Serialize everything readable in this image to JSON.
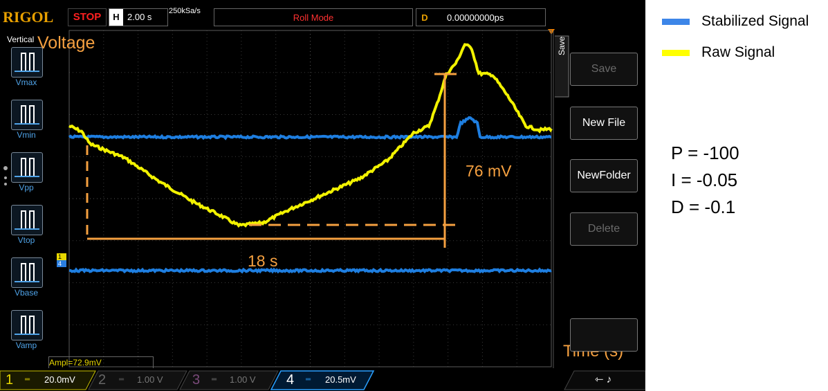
{
  "scope": {
    "brand": "RIGOL",
    "run_state": "STOP",
    "horizontal": {
      "label": "H",
      "value": "2.00 s"
    },
    "sample_rate": "250kSa/s",
    "mode": "Roll Mode",
    "delay": {
      "label": "D",
      "value": "0.00000000ps"
    },
    "vertical_label": "Vertical",
    "measure_buttons": [
      {
        "label": "Vmax"
      },
      {
        "label": "Vmin"
      },
      {
        "label": "Vpp"
      },
      {
        "label": "Vtop"
      },
      {
        "label": "Vbase"
      },
      {
        "label": "Vamp"
      }
    ],
    "measurement_readout": "Ampl=72.9mV",
    "right_menu": {
      "side_tab": "Save",
      "buttons": [
        {
          "label": "Save",
          "enabled": false
        },
        {
          "label": "New File",
          "enabled": true
        },
        {
          "label": "NewFolder",
          "enabled": true
        },
        {
          "label": "Delete",
          "enabled": false
        }
      ]
    },
    "channels": [
      {
        "num": "1",
        "value": "20.0mV",
        "color": "#e8d800",
        "active": true
      },
      {
        "num": "2",
        "value": "1.00 V",
        "color": "#888888",
        "active": false
      },
      {
        "num": "3",
        "value": "1.00 V",
        "color": "#8a5a8a",
        "active": false
      },
      {
        "num": "4",
        "value": "20.5mV",
        "color": "#2aa0ff",
        "active": true
      }
    ],
    "colors": {
      "ch1": "#f2f200",
      "ch4": "#1e7ee0",
      "annotation": "#f5a040",
      "brand": "#e8a000"
    }
  },
  "annotations": {
    "y_axis": "Voltage",
    "x_axis": "Time (s)",
    "amplitude": "76 mV",
    "duration": "18 s"
  },
  "legend": [
    {
      "label": "Stabilized Signal",
      "color": "#3d86e8"
    },
    {
      "label": "Raw Signal",
      "color": "#ffff00"
    }
  ],
  "pid": {
    "p": "P = -100",
    "i": "I = -0.05",
    "d": "D = -0.1"
  }
}
